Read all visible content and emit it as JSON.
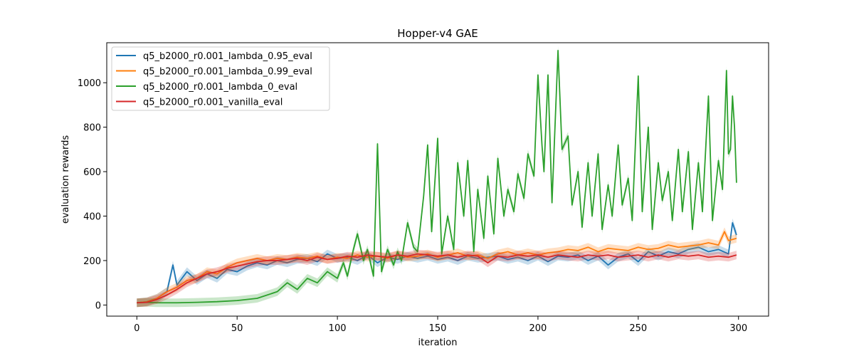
{
  "chart_data": {
    "type": "line",
    "title": "Hopper-v4 GAE",
    "xlabel": "iteration",
    "ylabel": "evaluation rewards",
    "xlim": [
      -15,
      315
    ],
    "ylim": [
      -50,
      1180
    ],
    "xticks": [
      0,
      50,
      100,
      150,
      200,
      250,
      300
    ],
    "yticks": [
      0,
      200,
      400,
      600,
      800,
      1000
    ],
    "legend_position": "top-left",
    "grid": false,
    "series": [
      {
        "name": "q5_b2000_r0.001_lambda_0.95_eval",
        "color": "#1f77b4",
        "x": [
          0,
          5,
          10,
          15,
          18,
          20,
          25,
          30,
          35,
          40,
          45,
          50,
          55,
          60,
          65,
          70,
          75,
          80,
          85,
          90,
          95,
          100,
          105,
          110,
          115,
          120,
          125,
          130,
          135,
          140,
          145,
          150,
          155,
          160,
          165,
          170,
          175,
          180,
          185,
          190,
          195,
          200,
          205,
          210,
          215,
          220,
          225,
          230,
          235,
          240,
          245,
          250,
          255,
          260,
          265,
          270,
          275,
          280,
          285,
          290,
          295,
          297,
          299
        ],
        "values": [
          10,
          15,
          30,
          60,
          180,
          90,
          150,
          110,
          140,
          120,
          160,
          150,
          175,
          190,
          180,
          200,
          190,
          205,
          210,
          195,
          230,
          210,
          215,
          200,
          225,
          190,
          215,
          205,
          220,
          210,
          220,
          205,
          215,
          200,
          220,
          210,
          215,
          220,
          205,
          215,
          200,
          220,
          195,
          220,
          215,
          225,
          200,
          220,
          180,
          215,
          230,
          195,
          240,
          220,
          240,
          230,
          250,
          260,
          240,
          250,
          230,
          370,
          315
        ]
      },
      {
        "name": "q5_b2000_r0.001_lambda_0.99_eval",
        "color": "#ff7f0e",
        "x": [
          0,
          5,
          10,
          15,
          20,
          25,
          30,
          35,
          40,
          45,
          50,
          55,
          60,
          65,
          70,
          75,
          80,
          85,
          90,
          95,
          100,
          105,
          110,
          115,
          120,
          125,
          130,
          135,
          140,
          145,
          150,
          155,
          160,
          165,
          170,
          175,
          180,
          185,
          190,
          195,
          200,
          205,
          210,
          215,
          220,
          225,
          230,
          235,
          240,
          245,
          250,
          255,
          260,
          265,
          270,
          275,
          280,
          285,
          290,
          293,
          295,
          299
        ],
        "values": [
          10,
          15,
          30,
          60,
          80,
          110,
          120,
          150,
          140,
          170,
          190,
          200,
          210,
          200,
          210,
          205,
          215,
          210,
          220,
          205,
          215,
          210,
          225,
          215,
          220,
          210,
          225,
          215,
          220,
          230,
          215,
          225,
          235,
          220,
          225,
          210,
          230,
          240,
          225,
          235,
          225,
          235,
          240,
          250,
          245,
          260,
          240,
          255,
          250,
          245,
          260,
          250,
          255,
          270,
          260,
          265,
          270,
          280,
          270,
          330,
          290,
          300
        ]
      },
      {
        "name": "q5_b2000_r0.001_lambda_0_eval",
        "color": "#2ca02c",
        "x": [
          0,
          5,
          10,
          20,
          30,
          40,
          50,
          60,
          70,
          75,
          80,
          85,
          90,
          95,
          100,
          103,
          105,
          108,
          110,
          113,
          115,
          118,
          120,
          122,
          125,
          128,
          130,
          132,
          135,
          138,
          140,
          143,
          145,
          147,
          150,
          152,
          155,
          158,
          160,
          163,
          165,
          168,
          170,
          173,
          175,
          178,
          180,
          183,
          185,
          188,
          190,
          193,
          195,
          198,
          200,
          202,
          203,
          205,
          207,
          210,
          212,
          215,
          217,
          220,
          222,
          225,
          227,
          230,
          232,
          235,
          237,
          240,
          242,
          245,
          247,
          250,
          252,
          255,
          257,
          260,
          262,
          265,
          267,
          270,
          272,
          275,
          277,
          280,
          282,
          285,
          287,
          290,
          292,
          294,
          295,
          296,
          297,
          298,
          299
        ],
        "values": [
          10,
          12,
          10,
          10,
          12,
          15,
          20,
          30,
          60,
          100,
          70,
          120,
          100,
          150,
          120,
          190,
          130,
          250,
          320,
          200,
          250,
          130,
          725,
          150,
          250,
          180,
          240,
          200,
          370,
          260,
          240,
          490,
          720,
          330,
          750,
          230,
          400,
          250,
          640,
          400,
          650,
          240,
          520,
          300,
          580,
          320,
          660,
          400,
          520,
          420,
          590,
          480,
          680,
          580,
          1035,
          720,
          600,
          1035,
          460,
          1145,
          700,
          760,
          450,
          600,
          350,
          640,
          400,
          680,
          340,
          540,
          400,
          720,
          450,
          570,
          380,
          1030,
          420,
          800,
          340,
          640,
          470,
          600,
          380,
          700,
          420,
          690,
          340,
          640,
          420,
          940,
          380,
          650,
          520,
          1055,
          680,
          700,
          940,
          800,
          550
        ]
      },
      {
        "name": "q5_b2000_r0.001_vanilla_eval",
        "color": "#d62728",
        "x": [
          0,
          5,
          10,
          15,
          20,
          25,
          30,
          35,
          40,
          45,
          50,
          55,
          60,
          65,
          70,
          75,
          80,
          85,
          90,
          95,
          100,
          105,
          110,
          115,
          120,
          125,
          130,
          135,
          140,
          145,
          150,
          155,
          160,
          165,
          170,
          175,
          180,
          185,
          190,
          195,
          200,
          205,
          210,
          215,
          220,
          225,
          230,
          235,
          240,
          245,
          250,
          255,
          260,
          265,
          270,
          275,
          280,
          285,
          290,
          295,
          299
        ],
        "values": [
          10,
          12,
          25,
          45,
          70,
          100,
          120,
          140,
          150,
          165,
          175,
          185,
          195,
          200,
          200,
          205,
          210,
          200,
          215,
          205,
          210,
          220,
          215,
          225,
          220,
          215,
          225,
          220,
          230,
          225,
          220,
          225,
          215,
          225,
          220,
          190,
          220,
          215,
          225,
          220,
          225,
          215,
          225,
          220,
          215,
          225,
          220,
          225,
          215,
          220,
          225,
          215,
          225,
          215,
          225,
          220,
          225,
          215,
          220,
          215,
          225
        ]
      }
    ]
  }
}
